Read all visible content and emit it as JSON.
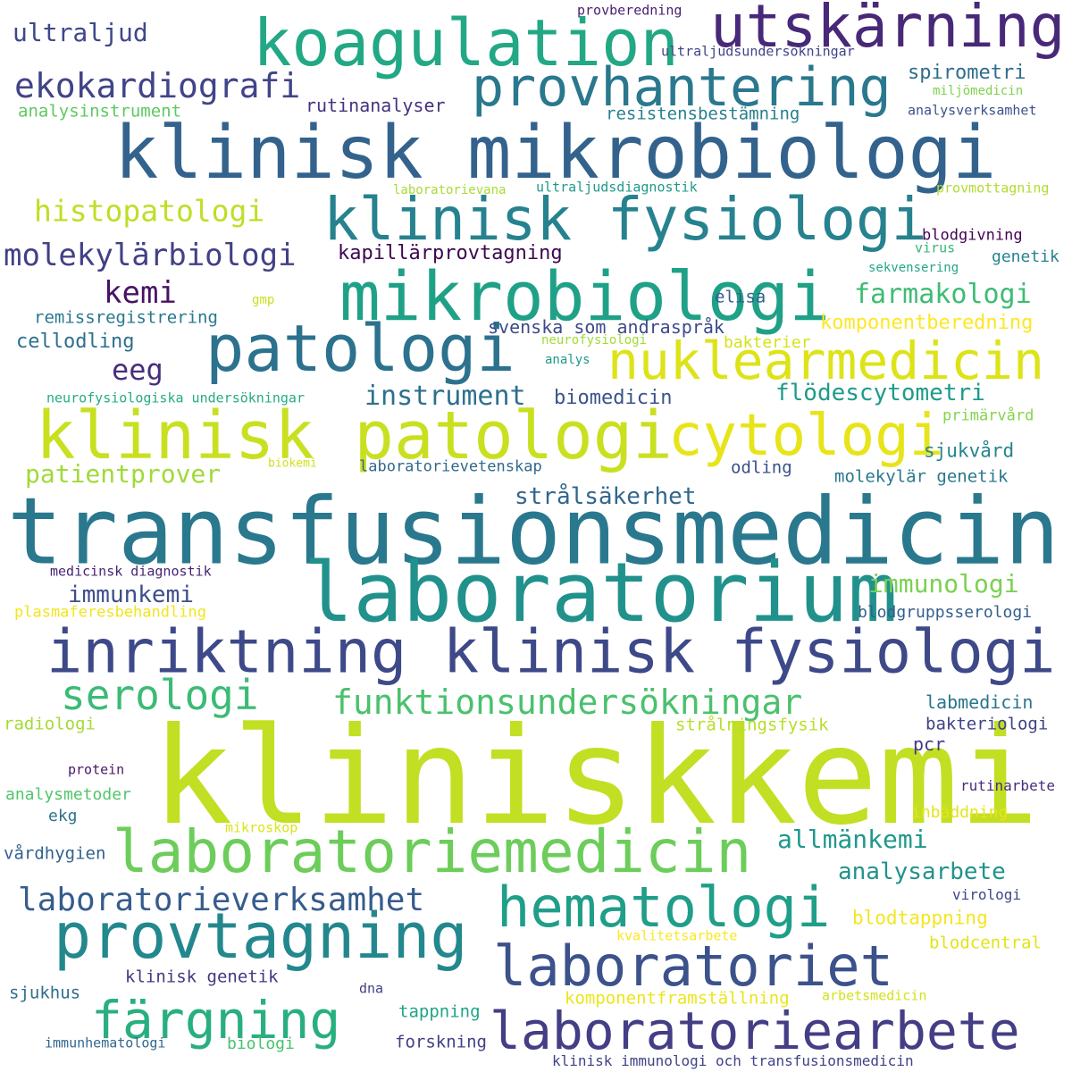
{
  "words": [
    {
      "text": "kliniskkemi",
      "color": "#c2df23"
    },
    {
      "text": "transfusionsmedicin",
      "color": "#2a788e"
    },
    {
      "text": "klinisk mikrobiologi",
      "color": "#33638d"
    },
    {
      "text": "laboratorium",
      "color": "#21918c"
    },
    {
      "text": "inriktning klinisk fysiologi",
      "color": "#3e4989"
    },
    {
      "text": "klinisk patologi",
      "color": "#c8e020"
    },
    {
      "text": "koagulation",
      "color": "#22a884"
    },
    {
      "text": "utskärning",
      "color": "#482878"
    },
    {
      "text": "provhantering",
      "color": "#2a788e"
    },
    {
      "text": "klinisk fysiologi",
      "color": "#26828e"
    },
    {
      "text": "mikrobiologi",
      "color": "#1fa187"
    },
    {
      "text": "patologi",
      "color": "#2c728e"
    },
    {
      "text": "nuklearmedicin",
      "color": "#dde318"
    },
    {
      "text": "cytologi",
      "color": "#e7e419"
    },
    {
      "text": "laboratoriemedicin",
      "color": "#6ccd5a"
    },
    {
      "text": "provtagning",
      "color": "#23888e"
    },
    {
      "text": "laboratoriet",
      "color": "#3b528b"
    },
    {
      "text": "laboratoriearbete",
      "color": "#433e85"
    },
    {
      "text": "hematologi",
      "color": "#1f9e89"
    },
    {
      "text": "färgning",
      "color": "#29af7f"
    },
    {
      "text": "serologi",
      "color": "#3bbb75"
    },
    {
      "text": "funktionsundersökningar",
      "color": "#4ac16d"
    },
    {
      "text": "laboratorieverksamhet",
      "color": "#365c8d"
    },
    {
      "text": "ekokardiografi",
      "color": "#414487"
    },
    {
      "text": "molekylärbiologi",
      "color": "#424086"
    },
    {
      "text": "histopatologi",
      "color": "#bddf26"
    },
    {
      "text": "ultraljud",
      "color": "#3f4889"
    },
    {
      "text": "farmakologi",
      "color": "#3dbc74"
    },
    {
      "text": "kemi",
      "color": "#471365"
    },
    {
      "text": "eeg",
      "color": "#472f7d"
    },
    {
      "text": "instrument",
      "color": "#2d708e"
    },
    {
      "text": "patientprover",
      "color": "#a0da39"
    },
    {
      "text": "strålsäkerhet",
      "color": "#31668e"
    },
    {
      "text": "immunkemi",
      "color": "#3c4f8a"
    },
    {
      "text": "allmänkemi",
      "color": "#1f988b"
    },
    {
      "text": "analysarbete",
      "color": "#20938c"
    },
    {
      "text": "immunologi",
      "color": "#7ad151"
    },
    {
      "text": "flödescytometri",
      "color": "#1e9b8a"
    },
    {
      "text": "spirometri",
      "color": "#2e6e8e"
    },
    {
      "text": "resistensbestämning",
      "color": "#27808e"
    },
    {
      "text": "rutinanalyser",
      "color": "#46327e"
    },
    {
      "text": "analysinstrument",
      "color": "#5ec962"
    },
    {
      "text": "kapillärprovtagning",
      "color": "#3e0751"
    },
    {
      "text": "komponentberedning",
      "color": "#fde725"
    },
    {
      "text": "svenska som andraspråk",
      "color": "#3e4a89"
    },
    {
      "text": "remissregistrering",
      "color": "#2a778e"
    },
    {
      "text": "cellodling",
      "color": "#2e6f8e"
    },
    {
      "text": "biomedicin",
      "color": "#3a538b"
    },
    {
      "text": "blodgivning",
      "color": "#440154"
    },
    {
      "text": "elisa",
      "color": "#365d8d"
    },
    {
      "text": "genetik",
      "color": "#26838f"
    },
    {
      "text": "bakterier",
      "color": "#d5e21a"
    },
    {
      "text": "neurofysiologiska undersökningar",
      "color": "#25ac82"
    },
    {
      "text": "primärvård",
      "color": "#84d44b"
    },
    {
      "text": "sjukvård",
      "color": "#25848e"
    },
    {
      "text": "laboratorievetenskap",
      "color": "#31688e"
    },
    {
      "text": "odling",
      "color": "#3b518b"
    },
    {
      "text": "molekylär genetik",
      "color": "#2a788e"
    },
    {
      "text": "biokemi",
      "color": "#d0e11c"
    },
    {
      "text": "medicinsk diagnostik",
      "color": "#482475"
    },
    {
      "text": "plasmaferesbehandling",
      "color": "#f1e51d"
    },
    {
      "text": "blodgruppsserologi",
      "color": "#355f8d"
    },
    {
      "text": "labmedicin",
      "color": "#2a768e"
    },
    {
      "text": "bakteriologi",
      "color": "#414287"
    },
    {
      "text": "radiologi",
      "color": "#a5db36"
    },
    {
      "text": "strålningsfysik",
      "color": "#b8de29"
    },
    {
      "text": "pcr",
      "color": "#443a83"
    },
    {
      "text": "protein",
      "color": "#481769"
    },
    {
      "text": "analysmetoder",
      "color": "#52c569"
    },
    {
      "text": "ekg",
      "color": "#2d718e"
    },
    {
      "text": "rutinarbete",
      "color": "#472d7b"
    },
    {
      "text": "inbäddning",
      "color": "#e5e419"
    },
    {
      "text": "mikroskop",
      "color": "#dae319"
    },
    {
      "text": "vårdhygien",
      "color": "#33628d"
    },
    {
      "text": "blodtappning",
      "color": "#f4e61e"
    },
    {
      "text": "virologi",
      "color": "#404688"
    },
    {
      "text": "kvalitetsarbete",
      "color": "#fbe723"
    },
    {
      "text": "blodcentral",
      "color": "#e2e418"
    },
    {
      "text": "klinisk genetik",
      "color": "#453781"
    },
    {
      "text": "sjukhus",
      "color": "#2e6d8e"
    },
    {
      "text": "dna",
      "color": "#423f85"
    },
    {
      "text": "komponentframställning",
      "color": "#ece51b"
    },
    {
      "text": "arbetsmedicin",
      "color": "#d2e21b"
    },
    {
      "text": "tappning",
      "color": "#21a585"
    },
    {
      "text": "immunhematologi",
      "color": "#31678e"
    },
    {
      "text": "biologi",
      "color": "#48c16e"
    },
    {
      "text": "forskning",
      "color": "#424086"
    },
    {
      "text": "klinisk immunologi och transfusionsmedicin",
      "color": "#414487"
    },
    {
      "text": "provberedning",
      "color": "#481f70"
    },
    {
      "text": "ultraljudsundersökningar",
      "color": "#404588"
    },
    {
      "text": "miljömedicin",
      "color": "#7fd34e"
    },
    {
      "text": "analysverksamhet",
      "color": "#3b528b"
    },
    {
      "text": "laboratorievana",
      "color": "#a8db34"
    },
    {
      "text": "ultraljudsdiagnostik",
      "color": "#1f998a"
    },
    {
      "text": "provmottagning",
      "color": "#b0dd2f"
    },
    {
      "text": "virus",
      "color": "#35b779"
    },
    {
      "text": "sekvensering",
      "color": "#22a785"
    },
    {
      "text": "gmp",
      "color": "#cae11f"
    },
    {
      "text": "neurofysiologi",
      "color": "#a2da37"
    },
    {
      "text": "analys",
      "color": "#1f9a8a"
    }
  ]
}
